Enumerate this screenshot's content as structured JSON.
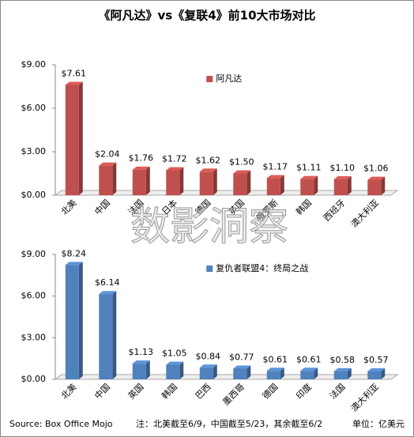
{
  "title": "《阿凡达》vs《复联4》前10大市场对比",
  "watermark": "数影洞察",
  "source": "Source: Box Office Mojo",
  "note": "注：北美截至6/9，中国截至5/23，其余截至6/2",
  "unit": "单位：亿美元",
  "chart_data": [
    {
      "type": "bar",
      "categories": [
        "北美",
        "中国",
        "法国",
        "日本",
        "德国",
        "英国",
        "俄罗斯",
        "韩国",
        "西班牙",
        "澳大利亚"
      ],
      "series": [
        {
          "name": "阿凡达",
          "color": "#c0504d",
          "values": [
            7.61,
            2.04,
            1.76,
            1.72,
            1.62,
            1.5,
            1.17,
            1.11,
            1.1,
            1.06
          ],
          "value_labels": [
            "$7.61",
            "$2.04",
            "$1.76",
            "$1.72",
            "$1.62",
            "$1.50",
            "$1.17",
            "$1.11",
            "$1.10",
            "$1.06"
          ]
        }
      ],
      "ylim": [
        0,
        9
      ],
      "yticks": [
        {
          "value": 0,
          "label": "$0.00"
        },
        {
          "value": 3,
          "label": "$3.00"
        },
        {
          "value": 6,
          "label": "$6.00"
        },
        {
          "value": 9,
          "label": "$9.00"
        }
      ],
      "grid": false,
      "legend": "upper center"
    },
    {
      "type": "bar",
      "categories": [
        "北美",
        "中国",
        "英国",
        "韩国",
        "巴西",
        "墨西哥",
        "德国",
        "印度",
        "法国",
        "澳大利亚"
      ],
      "series": [
        {
          "name": "复仇者联盟4：终局之战",
          "color": "#4f81bd",
          "values": [
            8.24,
            6.14,
            1.13,
            1.05,
            0.84,
            0.77,
            0.61,
            0.61,
            0.58,
            0.57
          ],
          "value_labels": [
            "$8.24",
            "$6.14",
            "$1.13",
            "$1.05",
            "$0.84",
            "$0.77",
            "$0.61",
            "$0.61",
            "$0.58",
            "$0.57"
          ]
        }
      ],
      "ylim": [
        0,
        9
      ],
      "yticks": [
        {
          "value": 0,
          "label": "$0.00"
        },
        {
          "value": 3,
          "label": "$3.00"
        },
        {
          "value": 6,
          "label": "$6.00"
        },
        {
          "value": 9,
          "label": "$9.00"
        }
      ],
      "grid": false,
      "legend": "upper center"
    }
  ]
}
